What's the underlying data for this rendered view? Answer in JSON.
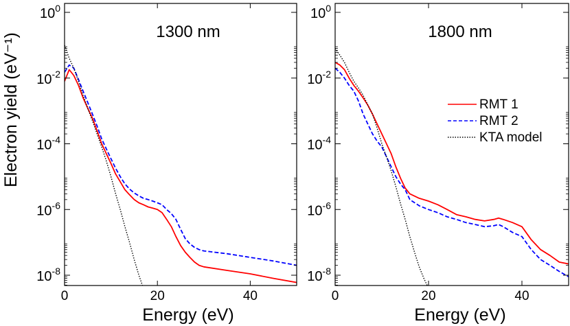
{
  "chart_data": [
    {
      "type": "line",
      "title": "",
      "annotation": "1300 nm",
      "xlabel": "Energy (eV)",
      "ylabel": "Electron yield (eV⁻¹)",
      "xlim": [
        0,
        50
      ],
      "ylim": [
        5e-09,
        1.5
      ],
      "yscale": "log",
      "grid": false,
      "x_ticks": [
        0,
        20,
        40
      ],
      "x_tick_labels": [
        "0",
        "20",
        "40"
      ],
      "y_ticks": [
        1,
        0.01,
        0.0001,
        1e-06,
        1e-08
      ],
      "y_tick_bases": [
        "10",
        "10",
        "10",
        "10",
        "10"
      ],
      "y_tick_exponents": [
        "0",
        "-2",
        "-4",
        "-6",
        "-8"
      ],
      "series": [
        {
          "name": "RMT 1",
          "style": "solid",
          "color": "#ff0000",
          "x": [
            0,
            1,
            2,
            3,
            4,
            5,
            6,
            7,
            8,
            9,
            10,
            11,
            12,
            13,
            14,
            15,
            16,
            17,
            18,
            19,
            20,
            21,
            22,
            23,
            24,
            25,
            26,
            27,
            28,
            29,
            30,
            35,
            40,
            45,
            50
          ],
          "y": [
            0.008,
            0.018,
            0.012,
            0.006,
            0.0025,
            0.0012,
            0.0006,
            0.00025,
            0.0001,
            5e-05,
            2.5e-05,
            1.2e-05,
            7e-06,
            4e-06,
            2.8e-06,
            2e-06,
            1.6e-06,
            1.4e-06,
            1.2e-06,
            1.1e-06,
            1e-06,
            8e-07,
            5e-07,
            3e-07,
            1.5e-07,
            8e-08,
            5e-08,
            3.5e-08,
            2.5e-08,
            2e-08,
            1.8e-08,
            1.4e-08,
            1.1e-08,
            8e-09,
            6e-09
          ]
        },
        {
          "name": "RMT 2",
          "style": "dashed",
          "color": "#0000ff",
          "x": [
            0,
            1,
            2,
            3,
            4,
            5,
            6,
            7,
            8,
            9,
            10,
            11,
            12,
            13,
            14,
            15,
            16,
            17,
            18,
            19,
            20,
            21,
            22,
            23,
            24,
            25,
            26,
            27,
            28,
            29,
            30,
            35,
            40,
            45,
            50
          ],
          "y": [
            0.015,
            0.025,
            0.02,
            0.009,
            0.004,
            0.0018,
            0.0008,
            0.00035,
            0.00014,
            7e-05,
            3.5e-05,
            1.8e-05,
            1e-05,
            6e-06,
            4.2e-06,
            3.2e-06,
            2.6e-06,
            2.2e-06,
            2e-06,
            1.8e-06,
            1.6e-06,
            1.4e-06,
            1e-06,
            7.5e-07,
            5e-07,
            2.5e-07,
            1.3e-07,
            9e-08,
            7e-08,
            6e-08,
            5.5e-08,
            4.5e-08,
            3.5e-08,
            2.7e-08,
            2e-08
          ]
        },
        {
          "name": "KTA model",
          "style": "dotted",
          "color": "#000000",
          "x": [
            0,
            1,
            2,
            3,
            4,
            5,
            6,
            7,
            8,
            9,
            10,
            11,
            12,
            13,
            14,
            15,
            16,
            17
          ],
          "y": [
            0.1,
            0.04,
            0.02,
            0.008,
            0.003,
            0.0012,
            0.0005,
            0.0002,
            8e-05,
            3e-05,
            1e-05,
            3e-06,
            1e-06,
            3e-07,
            1e-07,
            3e-08,
            1e-08,
            4e-09
          ]
        }
      ]
    },
    {
      "type": "line",
      "title": "",
      "annotation": "1800 nm",
      "xlabel": "Energy (eV)",
      "ylabel": "",
      "xlim": [
        0,
        50
      ],
      "ylim": [
        5e-09,
        1.5
      ],
      "yscale": "log",
      "grid": false,
      "legend": "right",
      "x_ticks": [
        0,
        20,
        40
      ],
      "x_tick_labels": [
        "0",
        "20",
        "40"
      ],
      "y_ticks": [
        1,
        0.01,
        0.0001,
        1e-06,
        1e-08
      ],
      "y_tick_bases": [
        "10",
        "10",
        "10",
        "10",
        "10"
      ],
      "y_tick_exponents": [
        "0",
        "-2",
        "-4",
        "-6",
        "-8"
      ],
      "series": [
        {
          "name": "RMT 1",
          "style": "solid",
          "color": "#ff0000",
          "x": [
            0,
            1,
            2,
            3,
            4,
            5,
            6,
            7,
            8,
            9,
            10,
            11,
            12,
            13,
            14,
            15,
            16,
            18,
            20,
            22,
            24,
            26,
            28,
            30,
            32,
            34,
            35,
            36,
            38,
            40,
            42,
            44,
            46,
            48,
            50
          ],
          "y": [
            0.03,
            0.025,
            0.018,
            0.01,
            0.006,
            0.004,
            0.0025,
            0.0015,
            0.0008,
            0.0004,
            0.0002,
            0.0001,
            5e-05,
            2e-05,
            9e-06,
            4.5e-06,
            3e-06,
            2.2e-06,
            1.8e-06,
            1.4e-06,
            1e-06,
            7e-07,
            6e-07,
            5e-07,
            4.5e-07,
            5e-07,
            5.5e-07,
            5e-07,
            4e-07,
            3e-07,
            1.2e-07,
            6e-08,
            4e-08,
            2.5e-08,
            2.2e-08
          ]
        },
        {
          "name": "RMT 2",
          "style": "dashed",
          "color": "#0000ff",
          "x": [
            0,
            1,
            2,
            3,
            4,
            5,
            6,
            7,
            8,
            9,
            10,
            11,
            12,
            13,
            14,
            15,
            16,
            18,
            20,
            22,
            24,
            26,
            28,
            30,
            32,
            34,
            35,
            36,
            38,
            40,
            42,
            44,
            46,
            48,
            50
          ],
          "y": [
            0.02,
            0.015,
            0.01,
            0.006,
            0.004,
            0.002,
            0.0008,
            0.0004,
            0.0002,
            0.00012,
            8e-05,
            4e-05,
            2e-05,
            1e-05,
            6e-06,
            4e-06,
            2e-06,
            1.3e-06,
            1e-06,
            8e-07,
            6e-07,
            5e-07,
            4e-07,
            3.5e-07,
            3e-07,
            3.2e-07,
            3.5e-07,
            3e-07,
            2e-07,
            1.5e-07,
            6e-08,
            3e-08,
            2e-08,
            1.3e-08,
            9e-09
          ]
        },
        {
          "name": "KTA model",
          "style": "dotted",
          "color": "#000000",
          "x": [
            0,
            1,
            2,
            3,
            4,
            5,
            6,
            7,
            8,
            9,
            10,
            11,
            12,
            13,
            14,
            15,
            16,
            17,
            18,
            19,
            20
          ],
          "y": [
            0.08,
            0.05,
            0.03,
            0.015,
            0.008,
            0.005,
            0.003,
            0.0015,
            0.0008,
            0.0003,
            0.0001,
            4e-05,
            1.5e-05,
            5e-06,
            1.5e-06,
            5e-07,
            1.5e-07,
            5e-08,
            1.8e-08,
            8e-09,
            4e-09
          ]
        }
      ]
    }
  ]
}
